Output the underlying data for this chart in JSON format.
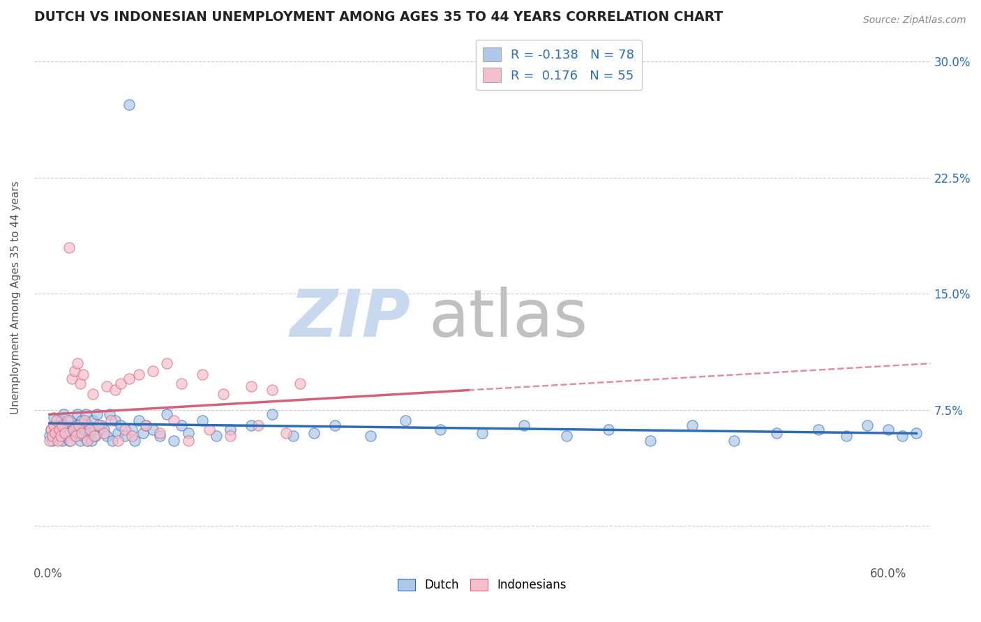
{
  "title": "DUTCH VS INDONESIAN UNEMPLOYMENT AMONG AGES 35 TO 44 YEARS CORRELATION CHART",
  "source": "Source: ZipAtlas.com",
  "ylabel": "Unemployment Among Ages 35 to 44 years",
  "xlim": [
    -0.01,
    0.63
  ],
  "ylim": [
    -0.025,
    0.32
  ],
  "dutch_R": -0.138,
  "dutch_N": 78,
  "indonesian_R": 0.176,
  "indonesian_N": 55,
  "dutch_color": "#adc8e8",
  "dutch_line_color": "#2d6db5",
  "indonesian_color": "#f5c0cc",
  "indonesian_line_color": "#d4607a",
  "y_ticks": [
    0.0,
    0.075,
    0.15,
    0.225,
    0.3
  ],
  "y_tick_labels_right": [
    "",
    "7.5%",
    "15.0%",
    "22.5%",
    "30.0%"
  ],
  "x_ticks": [
    0.0,
    0.6
  ],
  "x_tick_labels": [
    "0.0%",
    "60.0%"
  ],
  "dutch_scatter_x": [
    0.001,
    0.002,
    0.003,
    0.004,
    0.005,
    0.008,
    0.009,
    0.01,
    0.011,
    0.012,
    0.013,
    0.014,
    0.015,
    0.016,
    0.018,
    0.019,
    0.02,
    0.021,
    0.022,
    0.023,
    0.024,
    0.025,
    0.026,
    0.027,
    0.028,
    0.029,
    0.03,
    0.031,
    0.032,
    0.033,
    0.034,
    0.035,
    0.038,
    0.04,
    0.042,
    0.044,
    0.046,
    0.048,
    0.05,
    0.052,
    0.055,
    0.058,
    0.06,
    0.062,
    0.065,
    0.068,
    0.07,
    0.075,
    0.08,
    0.085,
    0.09,
    0.095,
    0.1,
    0.11,
    0.12,
    0.13,
    0.145,
    0.16,
    0.175,
    0.19,
    0.205,
    0.23,
    0.255,
    0.28,
    0.31,
    0.34,
    0.37,
    0.4,
    0.43,
    0.46,
    0.49,
    0.52,
    0.55,
    0.57,
    0.585,
    0.6,
    0.61,
    0.62
  ],
  "dutch_scatter_y": [
    0.058,
    0.062,
    0.055,
    0.07,
    0.065,
    0.06,
    0.068,
    0.055,
    0.072,
    0.058,
    0.065,
    0.06,
    0.055,
    0.068,
    0.062,
    0.058,
    0.065,
    0.072,
    0.06,
    0.055,
    0.068,
    0.058,
    0.062,
    0.072,
    0.055,
    0.065,
    0.06,
    0.055,
    0.068,
    0.062,
    0.058,
    0.072,
    0.065,
    0.062,
    0.058,
    0.072,
    0.055,
    0.068,
    0.06,
    0.065,
    0.058,
    0.272,
    0.062,
    0.055,
    0.068,
    0.06,
    0.065,
    0.062,
    0.058,
    0.072,
    0.055,
    0.065,
    0.06,
    0.068,
    0.058,
    0.062,
    0.065,
    0.072,
    0.058,
    0.06,
    0.065,
    0.058,
    0.068,
    0.062,
    0.06,
    0.065,
    0.058,
    0.062,
    0.055,
    0.065,
    0.055,
    0.06,
    0.062,
    0.058,
    0.065,
    0.062,
    0.058,
    0.06
  ],
  "indonesian_scatter_x": [
    0.001,
    0.002,
    0.003,
    0.004,
    0.005,
    0.006,
    0.007,
    0.008,
    0.009,
    0.01,
    0.012,
    0.014,
    0.016,
    0.018,
    0.02,
    0.022,
    0.024,
    0.026,
    0.028,
    0.03,
    0.033,
    0.036,
    0.04,
    0.045,
    0.05,
    0.055,
    0.06,
    0.07,
    0.08,
    0.09,
    0.1,
    0.115,
    0.13,
    0.15,
    0.17,
    0.015,
    0.017,
    0.019,
    0.021,
    0.023,
    0.025,
    0.032,
    0.042,
    0.048,
    0.052,
    0.058,
    0.065,
    0.075,
    0.085,
    0.095,
    0.11,
    0.125,
    0.145,
    0.16,
    0.18
  ],
  "indonesian_scatter_y": [
    0.055,
    0.062,
    0.058,
    0.065,
    0.06,
    0.068,
    0.055,
    0.062,
    0.058,
    0.065,
    0.06,
    0.068,
    0.055,
    0.062,
    0.058,
    0.065,
    0.06,
    0.068,
    0.055,
    0.062,
    0.058,
    0.065,
    0.06,
    0.068,
    0.055,
    0.062,
    0.058,
    0.065,
    0.06,
    0.068,
    0.055,
    0.062,
    0.058,
    0.065,
    0.06,
    0.18,
    0.095,
    0.1,
    0.105,
    0.092,
    0.098,
    0.085,
    0.09,
    0.088,
    0.092,
    0.095,
    0.098,
    0.1,
    0.105,
    0.092,
    0.098,
    0.085,
    0.09,
    0.088,
    0.092
  ],
  "background_color": "#ffffff",
  "grid_color": "#cccccc",
  "watermark_zip_color": "#c8d8ee",
  "watermark_atlas_color": "#c0c0c0"
}
